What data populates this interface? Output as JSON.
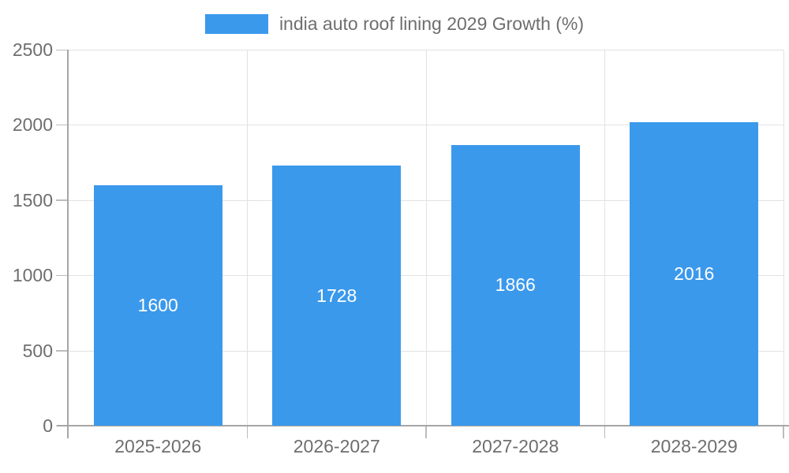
{
  "legend": {
    "label": "india auto roof lining 2029 Growth (%)"
  },
  "chart_data": {
    "type": "bar",
    "title": "",
    "categories": [
      "2025-2026",
      "2026-2027",
      "2027-2028",
      "2028-2029"
    ],
    "series": [
      {
        "name": "india auto roof lining 2029 Growth (%)",
        "values": [
          1600,
          1728,
          1866,
          2016
        ]
      }
    ],
    "value_labels": [
      1600,
      1728,
      1866,
      2016
    ],
    "ylim": [
      0,
      2500
    ],
    "y_ticks": [
      0,
      500,
      1000,
      1500,
      2000,
      2500
    ],
    "xlabel": "",
    "ylabel": "",
    "grid": true,
    "legend_position": "top-center",
    "value_label_position": "inside-center"
  },
  "colors": {
    "bar": "#3b99ec",
    "axis": "#a6a6a6",
    "tick": "#bcbcbc",
    "grid": "#e2e2e2",
    "label_text": "#6e6e6e",
    "value_text": "#ffffff",
    "background": "#ffffff"
  }
}
